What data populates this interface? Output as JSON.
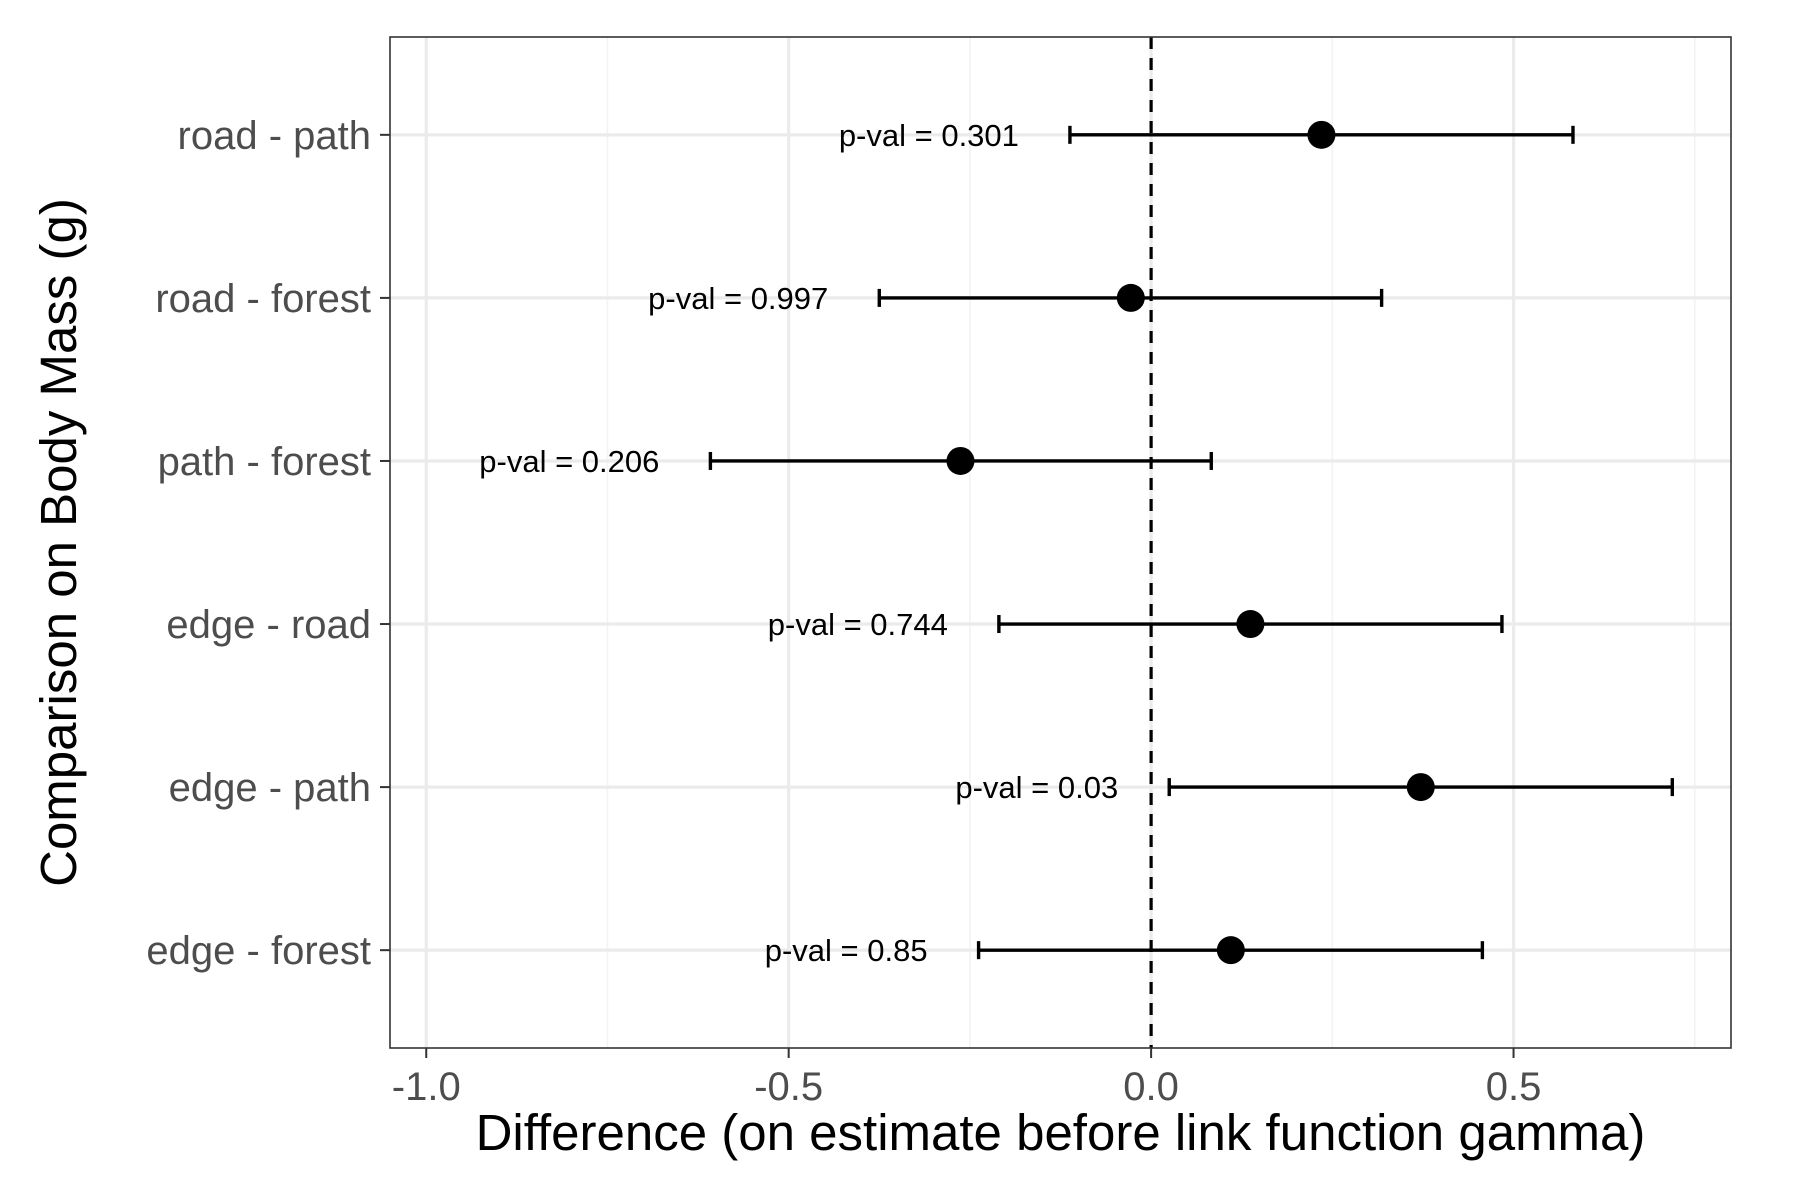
{
  "chart_data": {
    "type": "scatter",
    "subtype": "forest-plot-with-error-bars",
    "xlabel": "Difference (on estimate before link function gamma)",
    "ylabel": "Comparison on Body Mass (g)",
    "xlim": [
      -1.05,
      0.8
    ],
    "x_ticks": [
      {
        "value": -1.0,
        "label": "-1.0"
      },
      {
        "value": -0.5,
        "label": "-0.5"
      },
      {
        "value": 0.0,
        "label": "0.0"
      },
      {
        "value": 0.5,
        "label": "0.5"
      }
    ],
    "reference_line": {
      "x": 0,
      "style": "dashed"
    },
    "grid": true,
    "pval_prefix": "p-val = ",
    "points": [
      {
        "label": "road - path",
        "estimate": 0.235,
        "lower": -0.112,
        "upper": 0.582,
        "pval": "0.301"
      },
      {
        "label": "road - forest",
        "estimate": -0.028,
        "lower": -0.375,
        "upper": 0.318,
        "pval": "0.997"
      },
      {
        "label": "path - forest",
        "estimate": -0.263,
        "lower": -0.608,
        "upper": 0.083,
        "pval": "0.206"
      },
      {
        "label": "edge - road",
        "estimate": 0.137,
        "lower": -0.21,
        "upper": 0.484,
        "pval": "0.744"
      },
      {
        "label": "edge - path",
        "estimate": 0.372,
        "lower": 0.025,
        "upper": 0.719,
        "pval": "0.03"
      },
      {
        "label": "edge - forest",
        "estimate": 0.11,
        "lower": -0.238,
        "upper": 0.457,
        "pval": "0.85"
      }
    ],
    "colors": {
      "points": "#000000",
      "panel_border": "#333333",
      "grid_major": "#ebebeb",
      "grid_minor": "#f3f3f3",
      "tick_text": "#4d4d4d"
    }
  }
}
